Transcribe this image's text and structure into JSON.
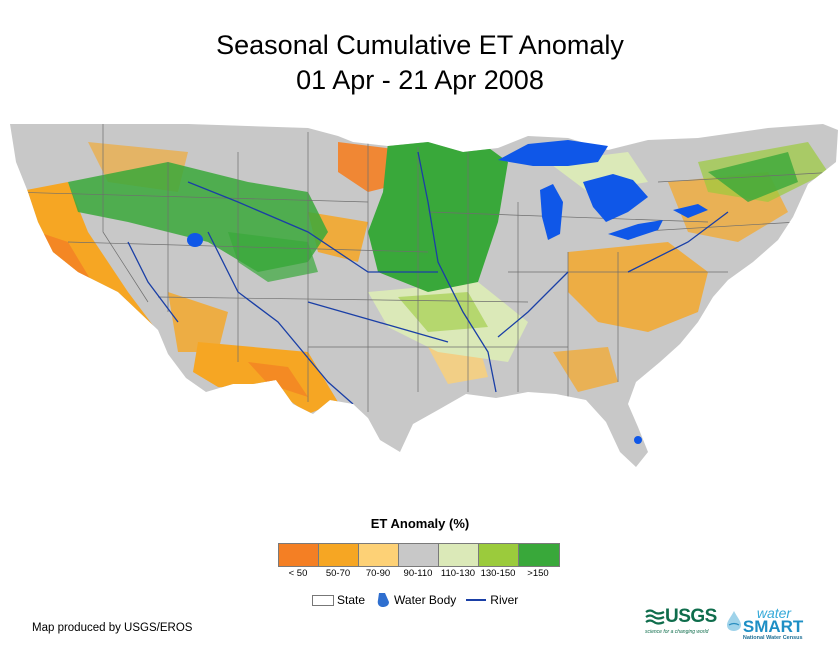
{
  "title": {
    "line1": "Seasonal Cumulative ET Anomaly",
    "line2": "01 Apr - 21 Apr 2008"
  },
  "legend": {
    "title": "ET Anomaly (%)",
    "classes": [
      {
        "label": "< 50",
        "color": "#f47f24"
      },
      {
        "label": "50-70",
        "color": "#f6a623"
      },
      {
        "label": "70-90",
        "color": "#fdd176"
      },
      {
        "label": "90-110",
        "color": "#c8c8c8"
      },
      {
        "label": "110-130",
        "color": "#dbe9b8"
      },
      {
        "label": "130-150",
        "color": "#9bcb3c"
      },
      {
        "label": ">150",
        "color": "#39a83a"
      }
    ],
    "symbols": {
      "state": "State",
      "water_body": "Water Body",
      "river": "River"
    }
  },
  "colors": {
    "water": "#0f57e8",
    "river": "#1a3fa6",
    "state_line": "#6e6e6e",
    "base_gray": "#c8c8c8"
  },
  "credit": "Map produced by USGS/EROS",
  "logos": {
    "usgs": "USGS",
    "usgs_tagline": "science for a changing world",
    "watersmart_top": "water",
    "watersmart_main": "SMART",
    "watersmart_sub": "National Water Census"
  }
}
